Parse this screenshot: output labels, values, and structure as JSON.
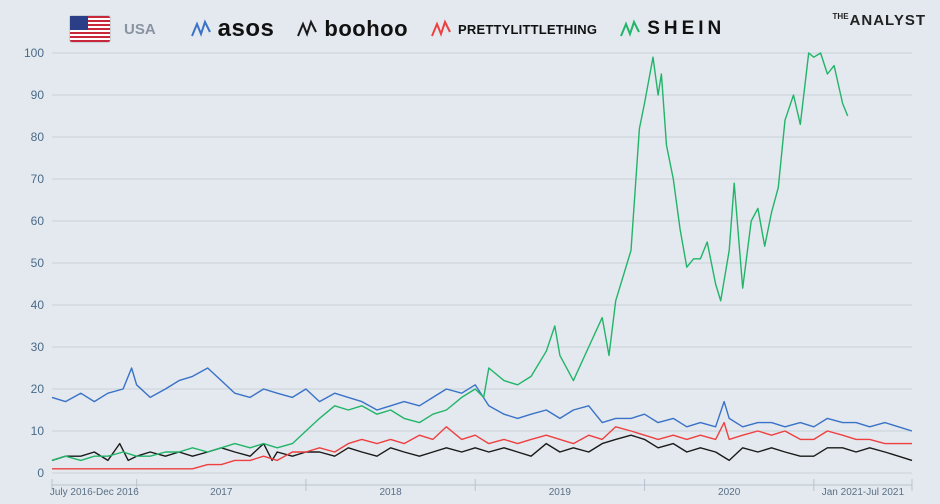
{
  "legend": {
    "country": "USA",
    "brands": [
      {
        "name": "asos",
        "color": "#3a72c8"
      },
      {
        "name": "boohoo",
        "color": "#1a1a1a"
      },
      {
        "name": "PRETTYLITTLETHING",
        "color": "#ee4040"
      },
      {
        "name": "SHEIN",
        "color": "#22b469"
      }
    ]
  },
  "logo": {
    "small": "THE",
    "big": "ANALYST"
  },
  "chart_data": {
    "type": "line",
    "ylim": [
      0,
      100
    ],
    "yticks": [
      "0",
      "10",
      "20",
      "30",
      "40",
      "50",
      "60",
      "70",
      "80",
      "90",
      "100"
    ],
    "xlim": [
      2016.5,
      2021.58
    ],
    "periods": [
      "July 2016-Dec 2016",
      "2017",
      "2018",
      "2019",
      "2020",
      "Jan 2021-Jul 2021"
    ],
    "grid": true,
    "series": [
      {
        "name": "asos",
        "color": "#3a72c8",
        "points": [
          [
            2016.5,
            18
          ],
          [
            2016.58,
            17
          ],
          [
            2016.67,
            19
          ],
          [
            2016.75,
            17
          ],
          [
            2016.83,
            19
          ],
          [
            2016.92,
            20
          ],
          [
            2016.97,
            25
          ],
          [
            2017.0,
            21
          ],
          [
            2017.08,
            18
          ],
          [
            2017.17,
            20
          ],
          [
            2017.25,
            22
          ],
          [
            2017.33,
            23
          ],
          [
            2017.42,
            25
          ],
          [
            2017.5,
            22
          ],
          [
            2017.58,
            19
          ],
          [
            2017.67,
            18
          ],
          [
            2017.75,
            20
          ],
          [
            2017.83,
            19
          ],
          [
            2017.92,
            18
          ],
          [
            2018.0,
            20
          ],
          [
            2018.08,
            17
          ],
          [
            2018.17,
            19
          ],
          [
            2018.25,
            18
          ],
          [
            2018.33,
            17
          ],
          [
            2018.42,
            15
          ],
          [
            2018.5,
            16
          ],
          [
            2018.58,
            17
          ],
          [
            2018.67,
            16
          ],
          [
            2018.75,
            18
          ],
          [
            2018.83,
            20
          ],
          [
            2018.92,
            19
          ],
          [
            2019.0,
            21
          ],
          [
            2019.08,
            16
          ],
          [
            2019.17,
            14
          ],
          [
            2019.25,
            13
          ],
          [
            2019.33,
            14
          ],
          [
            2019.42,
            15
          ],
          [
            2019.5,
            13
          ],
          [
            2019.58,
            15
          ],
          [
            2019.67,
            16
          ],
          [
            2019.75,
            12
          ],
          [
            2019.83,
            13
          ],
          [
            2019.92,
            13
          ],
          [
            2020.0,
            14
          ],
          [
            2020.08,
            12
          ],
          [
            2020.17,
            13
          ],
          [
            2020.25,
            11
          ],
          [
            2020.33,
            12
          ],
          [
            2020.42,
            11
          ],
          [
            2020.47,
            17
          ],
          [
            2020.5,
            13
          ],
          [
            2020.58,
            11
          ],
          [
            2020.67,
            12
          ],
          [
            2020.75,
            12
          ],
          [
            2020.83,
            11
          ],
          [
            2020.92,
            12
          ],
          [
            2021.0,
            11
          ],
          [
            2021.08,
            13
          ],
          [
            2021.17,
            12
          ],
          [
            2021.25,
            12
          ],
          [
            2021.33,
            11
          ],
          [
            2021.42,
            12
          ],
          [
            2021.5,
            11
          ],
          [
            2021.58,
            10
          ]
        ]
      },
      {
        "name": "boohoo",
        "color": "#1a1a1a",
        "points": [
          [
            2016.5,
            3
          ],
          [
            2016.58,
            4
          ],
          [
            2016.67,
            4
          ],
          [
            2016.75,
            5
          ],
          [
            2016.83,
            3
          ],
          [
            2016.9,
            7
          ],
          [
            2016.95,
            3
          ],
          [
            2017.0,
            4
          ],
          [
            2017.08,
            5
          ],
          [
            2017.17,
            4
          ],
          [
            2017.25,
            5
          ],
          [
            2017.33,
            4
          ],
          [
            2017.42,
            5
          ],
          [
            2017.5,
            6
          ],
          [
            2017.58,
            5
          ],
          [
            2017.67,
            4
          ],
          [
            2017.75,
            7
          ],
          [
            2017.8,
            3
          ],
          [
            2017.83,
            5
          ],
          [
            2017.92,
            4
          ],
          [
            2018.0,
            5
          ],
          [
            2018.08,
            5
          ],
          [
            2018.17,
            4
          ],
          [
            2018.25,
            6
          ],
          [
            2018.33,
            5
          ],
          [
            2018.42,
            4
          ],
          [
            2018.5,
            6
          ],
          [
            2018.58,
            5
          ],
          [
            2018.67,
            4
          ],
          [
            2018.75,
            5
          ],
          [
            2018.83,
            6
          ],
          [
            2018.92,
            5
          ],
          [
            2019.0,
            6
          ],
          [
            2019.08,
            5
          ],
          [
            2019.17,
            6
          ],
          [
            2019.25,
            5
          ],
          [
            2019.33,
            4
          ],
          [
            2019.42,
            7
          ],
          [
            2019.5,
            5
          ],
          [
            2019.58,
            6
          ],
          [
            2019.67,
            5
          ],
          [
            2019.75,
            7
          ],
          [
            2019.83,
            8
          ],
          [
            2019.92,
            9
          ],
          [
            2020.0,
            8
          ],
          [
            2020.08,
            6
          ],
          [
            2020.17,
            7
          ],
          [
            2020.25,
            5
          ],
          [
            2020.33,
            6
          ],
          [
            2020.42,
            5
          ],
          [
            2020.5,
            3
          ],
          [
            2020.58,
            6
          ],
          [
            2020.67,
            5
          ],
          [
            2020.75,
            6
          ],
          [
            2020.83,
            5
          ],
          [
            2020.92,
            4
          ],
          [
            2021.0,
            4
          ],
          [
            2021.08,
            6
          ],
          [
            2021.17,
            6
          ],
          [
            2021.25,
            5
          ],
          [
            2021.33,
            6
          ],
          [
            2021.42,
            5
          ],
          [
            2021.5,
            4
          ],
          [
            2021.58,
            3
          ]
        ]
      },
      {
        "name": "PRETTYLITTLETHING",
        "color": "#ee4040",
        "points": [
          [
            2016.5,
            1
          ],
          [
            2016.58,
            1
          ],
          [
            2016.67,
            1
          ],
          [
            2016.75,
            1
          ],
          [
            2016.83,
            1
          ],
          [
            2016.92,
            1
          ],
          [
            2017.0,
            1
          ],
          [
            2017.08,
            1
          ],
          [
            2017.17,
            1
          ],
          [
            2017.25,
            1
          ],
          [
            2017.33,
            1
          ],
          [
            2017.42,
            2
          ],
          [
            2017.5,
            2
          ],
          [
            2017.58,
            3
          ],
          [
            2017.67,
            3
          ],
          [
            2017.75,
            4
          ],
          [
            2017.83,
            3
          ],
          [
            2017.92,
            5
          ],
          [
            2018.0,
            5
          ],
          [
            2018.08,
            6
          ],
          [
            2018.17,
            5
          ],
          [
            2018.25,
            7
          ],
          [
            2018.33,
            8
          ],
          [
            2018.42,
            7
          ],
          [
            2018.5,
            8
          ],
          [
            2018.58,
            7
          ],
          [
            2018.67,
            9
          ],
          [
            2018.75,
            8
          ],
          [
            2018.83,
            11
          ],
          [
            2018.92,
            8
          ],
          [
            2019.0,
            9
          ],
          [
            2019.08,
            7
          ],
          [
            2019.17,
            8
          ],
          [
            2019.25,
            7
          ],
          [
            2019.33,
            8
          ],
          [
            2019.42,
            9
          ],
          [
            2019.5,
            8
          ],
          [
            2019.58,
            7
          ],
          [
            2019.67,
            9
          ],
          [
            2019.75,
            8
          ],
          [
            2019.83,
            11
          ],
          [
            2019.92,
            10
          ],
          [
            2020.0,
            9
          ],
          [
            2020.08,
            8
          ],
          [
            2020.17,
            9
          ],
          [
            2020.25,
            8
          ],
          [
            2020.33,
            9
          ],
          [
            2020.42,
            8
          ],
          [
            2020.47,
            12
          ],
          [
            2020.5,
            8
          ],
          [
            2020.58,
            9
          ],
          [
            2020.67,
            10
          ],
          [
            2020.75,
            9
          ],
          [
            2020.83,
            10
          ],
          [
            2020.92,
            8
          ],
          [
            2021.0,
            8
          ],
          [
            2021.08,
            10
          ],
          [
            2021.17,
            9
          ],
          [
            2021.25,
            8
          ],
          [
            2021.33,
            8
          ],
          [
            2021.42,
            7
          ],
          [
            2021.5,
            7
          ],
          [
            2021.58,
            7
          ]
        ]
      },
      {
        "name": "SHEIN",
        "color": "#22b469",
        "points": [
          [
            2016.5,
            3
          ],
          [
            2016.58,
            4
          ],
          [
            2016.67,
            3
          ],
          [
            2016.75,
            4
          ],
          [
            2016.83,
            4
          ],
          [
            2016.92,
            5
          ],
          [
            2017.0,
            4
          ],
          [
            2017.08,
            4
          ],
          [
            2017.17,
            5
          ],
          [
            2017.25,
            5
          ],
          [
            2017.33,
            6
          ],
          [
            2017.42,
            5
          ],
          [
            2017.5,
            6
          ],
          [
            2017.58,
            7
          ],
          [
            2017.67,
            6
          ],
          [
            2017.75,
            7
          ],
          [
            2017.83,
            6
          ],
          [
            2017.92,
            7
          ],
          [
            2018.0,
            10
          ],
          [
            2018.08,
            13
          ],
          [
            2018.17,
            16
          ],
          [
            2018.25,
            15
          ],
          [
            2018.33,
            16
          ],
          [
            2018.42,
            14
          ],
          [
            2018.5,
            15
          ],
          [
            2018.58,
            13
          ],
          [
            2018.67,
            12
          ],
          [
            2018.75,
            14
          ],
          [
            2018.83,
            15
          ],
          [
            2018.92,
            18
          ],
          [
            2019.0,
            20
          ],
          [
            2019.05,
            18
          ],
          [
            2019.08,
            25
          ],
          [
            2019.17,
            22
          ],
          [
            2019.25,
            21
          ],
          [
            2019.33,
            23
          ],
          [
            2019.42,
            29
          ],
          [
            2019.47,
            35
          ],
          [
            2019.5,
            28
          ],
          [
            2019.58,
            22
          ],
          [
            2019.67,
            30
          ],
          [
            2019.75,
            37
          ],
          [
            2019.79,
            28
          ],
          [
            2019.83,
            41
          ],
          [
            2019.92,
            53
          ],
          [
            2019.97,
            82
          ],
          [
            2020.0,
            88
          ],
          [
            2020.05,
            99
          ],
          [
            2020.08,
            90
          ],
          [
            2020.1,
            95
          ],
          [
            2020.13,
            78
          ],
          [
            2020.17,
            70
          ],
          [
            2020.21,
            58
          ],
          [
            2020.25,
            49
          ],
          [
            2020.29,
            51
          ],
          [
            2020.33,
            51
          ],
          [
            2020.37,
            55
          ],
          [
            2020.42,
            45
          ],
          [
            2020.45,
            41
          ],
          [
            2020.5,
            53
          ],
          [
            2020.53,
            69
          ],
          [
            2020.58,
            44
          ],
          [
            2020.63,
            60
          ],
          [
            2020.67,
            63
          ],
          [
            2020.71,
            54
          ],
          [
            2020.75,
            62
          ],
          [
            2020.79,
            68
          ],
          [
            2020.83,
            84
          ],
          [
            2020.88,
            90
          ],
          [
            2020.92,
            83
          ],
          [
            2020.97,
            100
          ],
          [
            2021.0,
            99
          ],
          [
            2021.04,
            100
          ],
          [
            2021.08,
            95
          ],
          [
            2021.12,
            97
          ],
          [
            2021.17,
            88
          ],
          [
            2021.2,
            85
          ]
        ]
      }
    ]
  }
}
